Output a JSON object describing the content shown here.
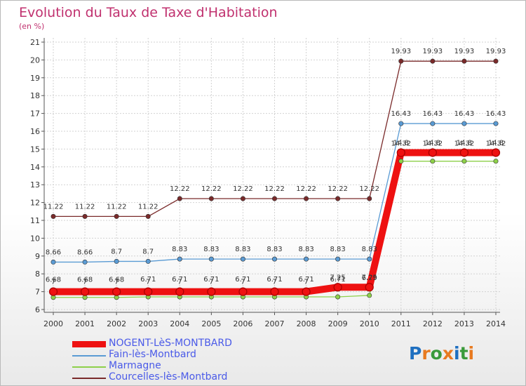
{
  "header": {
    "title": "Evolution du Taux de Taxe d'Habitation",
    "unit": "(en %)"
  },
  "logo": {
    "letters": [
      "P",
      "r",
      "o",
      "x",
      "i",
      "t",
      "i"
    ],
    "colors": [
      "#1e6fc0",
      "#e87a20",
      "#3a9a3a",
      "#e87a20",
      "#1e6fc0",
      "#3a9a3a",
      "#e87a20"
    ]
  },
  "chart_data": {
    "type": "line",
    "title": "Evolution du Taux de Taxe d'Habitation",
    "ylabel": "(en %)",
    "xlabel": "",
    "x": [
      "2000",
      "2001",
      "2002",
      "2003",
      "2004",
      "2005",
      "2006",
      "2007",
      "2008",
      "2009",
      "2010",
      "2011",
      "2012",
      "2013",
      "2014"
    ],
    "ylim": [
      6,
      21
    ],
    "yticks": [
      6,
      7,
      8,
      9,
      10,
      11,
      12,
      13,
      14,
      15,
      16,
      17,
      18,
      19,
      20,
      21
    ],
    "grid": true,
    "legend_position": "bottom-left",
    "series": [
      {
        "name": "NOGENT-LèS-MONTBARD",
        "color": "#ee1111",
        "values": [
          7,
          7,
          7,
          7,
          7,
          7,
          7,
          7,
          7,
          7.25,
          7.25,
          14.8,
          14.8,
          14.8,
          14.8
        ],
        "labels": [
          "7",
          "7",
          "7",
          "7",
          "7",
          "7",
          "7",
          "7",
          "7",
          "7.25",
          "7.25",
          "14.8",
          "14.8",
          "14.8",
          "14.8"
        ]
      },
      {
        "name": "Fain-lès-Montbard",
        "color": "#5a9bd4",
        "values": [
          8.66,
          8.66,
          8.7,
          8.7,
          8.83,
          8.83,
          8.83,
          8.83,
          8.83,
          8.83,
          8.83,
          16.43,
          16.43,
          16.43,
          16.43
        ],
        "labels": [
          "8.66",
          "8.66",
          "8.7",
          "8.7",
          "8.83",
          "8.83",
          "8.83",
          "8.83",
          "8.83",
          "8.83",
          "8.83",
          "16.43",
          "16.43",
          "16.43",
          "16.43"
        ]
      },
      {
        "name": "Marmagne",
        "color": "#8ed04a",
        "values": [
          6.68,
          6.68,
          6.68,
          6.71,
          6.71,
          6.71,
          6.71,
          6.71,
          6.71,
          6.71,
          6.79,
          14.32,
          14.32,
          14.32,
          14.32
        ],
        "labels": [
          "6.68",
          "6.68",
          "6.68",
          "6.71",
          "6.71",
          "6.71",
          "6.71",
          "6.71",
          "6.71",
          "6.71",
          "6.79",
          "14.32",
          "14.32",
          "14.32",
          "14.32"
        ]
      },
      {
        "name": "Courcelles-lès-Montbard",
        "color": "#7a2a2a",
        "values": [
          11.22,
          11.22,
          11.22,
          11.22,
          12.22,
          12.22,
          12.22,
          12.22,
          12.22,
          12.22,
          12.22,
          19.93,
          19.93,
          19.93,
          19.93
        ],
        "labels": [
          "11.22",
          "11.22",
          "11.22",
          "11.22",
          "12.22",
          "12.22",
          "12.22",
          "12.22",
          "12.22",
          "12.22",
          "12.22",
          "19.93",
          "19.93",
          "19.93",
          "19.93"
        ]
      }
    ]
  }
}
